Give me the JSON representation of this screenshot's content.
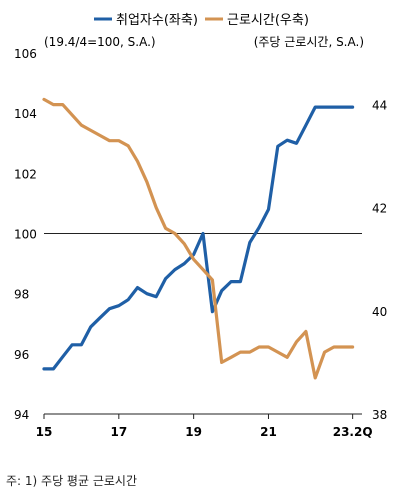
{
  "chart_data": {
    "type": "line",
    "legend": {
      "placement": "top",
      "left_unit": "(19.4/4=100, S.A.)",
      "right_unit": "(주당 근로시간, S.A.)"
    },
    "x_ticks": [
      "15",
      "17",
      "19",
      "21",
      "23.2Q"
    ],
    "xlim": [
      2015.0,
      2023.5
    ],
    "y_left": {
      "ylim": [
        94,
        106
      ],
      "ticks": [
        "94",
        "96",
        "98",
        "100",
        "102",
        "104",
        "106"
      ],
      "reference_line": 100
    },
    "y_right": {
      "ylim": [
        38,
        45
      ],
      "ticks": [
        "38",
        "40",
        "42",
        "44"
      ]
    },
    "series": [
      {
        "name": "취업자수(좌축)",
        "axis": "left",
        "color": "#1f5fa6",
        "x": [
          2015.0,
          2015.25,
          2015.5,
          2015.75,
          2016.0,
          2016.25,
          2016.5,
          2016.75,
          2017.0,
          2017.25,
          2017.5,
          2017.75,
          2018.0,
          2018.25,
          2018.5,
          2018.75,
          2019.0,
          2019.25,
          2019.5,
          2019.75,
          2020.0,
          2020.25,
          2020.5,
          2020.75,
          2021.0,
          2021.25,
          2021.5,
          2021.75,
          2022.0,
          2022.25,
          2022.5,
          2022.75,
          2023.0,
          2023.25
        ],
        "values": [
          95.5,
          95.5,
          95.9,
          96.3,
          96.3,
          96.9,
          97.2,
          97.5,
          97.6,
          97.8,
          98.2,
          98.0,
          97.9,
          98.5,
          98.8,
          99.0,
          99.3,
          100.0,
          97.4,
          98.1,
          98.4,
          98.4,
          99.7,
          100.2,
          100.8,
          102.9,
          103.1,
          103.0,
          103.6,
          104.2,
          104.2,
          104.2,
          104.2,
          104.2
        ]
      },
      {
        "name": "근로시간(우축)",
        "axis": "right",
        "color": "#d39352",
        "x": [
          2015.0,
          2015.25,
          2015.5,
          2015.75,
          2016.0,
          2016.25,
          2016.5,
          2016.75,
          2017.0,
          2017.25,
          2017.5,
          2017.75,
          2018.0,
          2018.25,
          2018.5,
          2018.75,
          2019.0,
          2019.25,
          2019.5,
          2019.75,
          2020.0,
          2020.25,
          2020.5,
          2020.75,
          2021.0,
          2021.25,
          2021.5,
          2021.75,
          2022.0,
          2022.25,
          2022.5,
          2022.75,
          2023.0,
          2023.25
        ],
        "values": [
          44.1,
          44.0,
          44.0,
          43.8,
          43.6,
          43.5,
          43.4,
          43.3,
          43.3,
          43.2,
          42.9,
          42.5,
          42.0,
          41.6,
          41.5,
          41.3,
          41.0,
          40.8,
          40.6,
          39.0,
          39.1,
          39.2,
          39.2,
          39.3,
          39.3,
          39.2,
          39.1,
          39.4,
          39.6,
          38.7,
          39.2,
          39.3,
          39.3,
          39.3
        ]
      }
    ]
  },
  "footnote": "주: 1) 주당 평균 근로시간"
}
